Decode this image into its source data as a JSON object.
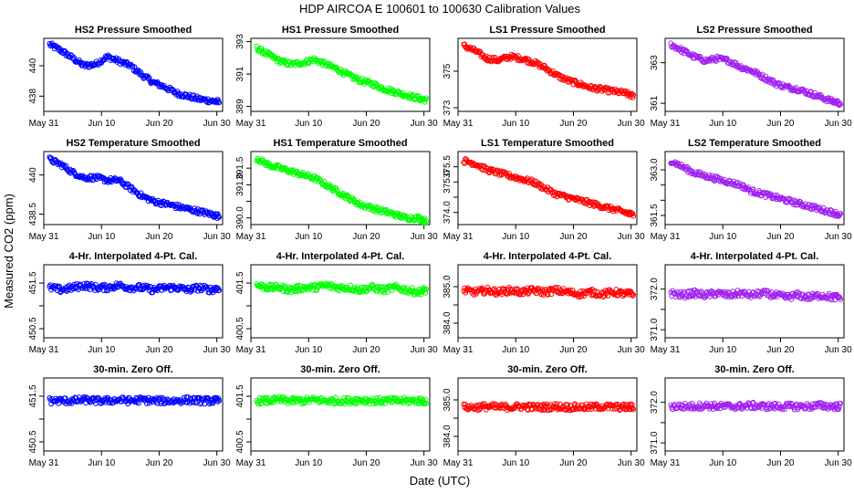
{
  "figure": {
    "title": "HDP    AIRCOA E    100601 to 100630    Calibration Values",
    "xlabel": "Date (UTC)",
    "ylabel": "Measured CO2 (ppm)"
  },
  "chart_data": [
    {
      "type": "scatter",
      "title": "HS2 Pressure Smoothed",
      "color": "#0000ff",
      "xlim": [
        0,
        31
      ],
      "ylim": [
        437,
        441.8
      ],
      "yticks": [
        438,
        440
      ],
      "xticks": [
        0,
        10,
        20,
        30
      ],
      "xticklabels": [
        "May 31",
        "Jun 10",
        "Jun 20",
        "Jun 30"
      ],
      "x": [
        1,
        3,
        5,
        7,
        9,
        11,
        13,
        15,
        17,
        19,
        21,
        23,
        25,
        27,
        29,
        30.5
      ],
      "y": [
        441.4,
        441.0,
        440.5,
        440.0,
        440.1,
        440.6,
        440.3,
        440.0,
        439.4,
        438.9,
        438.6,
        438.2,
        438.0,
        437.8,
        437.7,
        437.6
      ]
    },
    {
      "type": "scatter",
      "title": "HS1 Pressure Smoothed",
      "color": "#00ff00",
      "xlim": [
        0,
        31
      ],
      "ylim": [
        388.7,
        393.2
      ],
      "yticks": [
        389,
        391,
        393
      ],
      "xticks": [
        0,
        10,
        20,
        30
      ],
      "xticklabels": [
        "May 31",
        "Jun 10",
        "Jun 20",
        "Jun 30"
      ],
      "x": [
        1,
        3,
        5,
        7,
        9,
        11,
        13,
        15,
        17,
        19,
        21,
        23,
        25,
        27,
        29,
        30.5
      ],
      "y": [
        392.6,
        392.2,
        391.8,
        391.6,
        391.7,
        391.9,
        391.6,
        391.3,
        390.9,
        390.6,
        390.4,
        390.1,
        389.9,
        389.7,
        389.5,
        389.4
      ]
    },
    {
      "type": "scatter",
      "title": "LS1 Pressure Smoothed",
      "color": "#ff0000",
      "xlim": [
        0,
        31
      ],
      "ylim": [
        372.8,
        376.8
      ],
      "yticks": [
        373,
        375
      ],
      "xticks": [
        0,
        10,
        20,
        30
      ],
      "xticklabels": [
        "May 31",
        "Jun 10",
        "Jun 20",
        "Jun 30"
      ],
      "x": [
        1,
        3,
        5,
        7,
        9,
        11,
        13,
        15,
        17,
        19,
        21,
        23,
        25,
        27,
        29,
        30.5
      ],
      "y": [
        376.4,
        376.1,
        375.7,
        375.6,
        375.8,
        375.7,
        375.5,
        375.2,
        374.8,
        374.5,
        374.3,
        374.1,
        374.0,
        373.9,
        373.8,
        373.6
      ]
    },
    {
      "type": "scatter",
      "title": "LS2 Pressure Smoothed",
      "color": "#a020f0",
      "xlim": [
        0,
        31
      ],
      "ylim": [
        360.6,
        364.2
      ],
      "yticks": [
        361,
        363
      ],
      "xticks": [
        0,
        10,
        20,
        30
      ],
      "xticklabels": [
        "May 31",
        "Jun 10",
        "Jun 20",
        "Jun 30"
      ],
      "x": [
        1,
        3,
        5,
        7,
        9,
        11,
        13,
        15,
        17,
        19,
        21,
        23,
        25,
        27,
        29,
        30.5
      ],
      "y": [
        363.9,
        363.6,
        363.3,
        363.1,
        363.2,
        363.1,
        362.8,
        362.6,
        362.3,
        362.0,
        361.8,
        361.7,
        361.5,
        361.3,
        361.1,
        361.0
      ]
    },
    {
      "type": "scatter",
      "title": "HS2 Temperature Smoothed",
      "color": "#0000ff",
      "xlim": [
        0,
        31
      ],
      "ylim": [
        438.1,
        440.9
      ],
      "yticks": [
        438.5,
        440.0
      ],
      "xticks": [
        0,
        10,
        20,
        30
      ],
      "xticklabels": [
        "May 31",
        "Jun 10",
        "Jun 20",
        "Jun 30"
      ],
      "x": [
        1,
        3,
        5,
        7,
        9,
        11,
        13,
        15,
        17,
        19,
        21,
        23,
        25,
        27,
        29,
        30.5
      ],
      "y": [
        440.6,
        440.4,
        440.1,
        439.9,
        439.9,
        439.8,
        439.8,
        439.5,
        439.2,
        439.0,
        438.9,
        438.8,
        438.7,
        438.6,
        438.5,
        438.4
      ]
    },
    {
      "type": "scatter",
      "title": "HS1 Temperature Smoothed",
      "color": "#00ff00",
      "xlim": [
        0,
        31
      ],
      "ylim": [
        389.8,
        392.0
      ],
      "yticks": [
        390.0,
        390.5,
        391.0,
        391.5
      ],
      "yticklabels": [
        "390.0",
        "",
        "391.0",
        "391.5"
      ],
      "xticks": [
        0,
        10,
        20,
        30
      ],
      "xticklabels": [
        "May 31",
        "Jun 10",
        "Jun 20",
        "Jun 30"
      ],
      "x": [
        1,
        3,
        5,
        7,
        9,
        11,
        13,
        15,
        17,
        19,
        21,
        23,
        25,
        27,
        29,
        30.5
      ],
      "y": [
        391.8,
        391.6,
        391.5,
        391.4,
        391.3,
        391.2,
        391.0,
        390.8,
        390.6,
        390.4,
        390.3,
        390.2,
        390.1,
        390.0,
        390.0,
        389.9
      ]
    },
    {
      "type": "scatter",
      "title": "LS1 Temperature Smoothed",
      "color": "#ff0000",
      "xlim": [
        0,
        31
      ],
      "ylim": [
        373.6,
        376.0
      ],
      "yticks": [
        374.0,
        374.5,
        375.0,
        375.5
      ],
      "yticklabels": [
        "374.0",
        "",
        "375.0",
        "375.5"
      ],
      "xticks": [
        0,
        10,
        20,
        30
      ],
      "xticklabels": [
        "May 31",
        "Jun 10",
        "Jun 20",
        "Jun 30"
      ],
      "x": [
        1,
        3,
        5,
        7,
        9,
        11,
        13,
        15,
        17,
        19,
        21,
        23,
        25,
        27,
        29,
        30.5
      ],
      "y": [
        375.7,
        375.6,
        375.4,
        375.3,
        375.2,
        375.1,
        375.0,
        374.8,
        374.6,
        374.5,
        374.4,
        374.3,
        374.2,
        374.1,
        374.0,
        373.9
      ]
    },
    {
      "type": "scatter",
      "title": "LS2 Temperature Smoothed",
      "color": "#a020f0",
      "xlim": [
        0,
        31
      ],
      "ylim": [
        361.2,
        363.6
      ],
      "yticks": [
        361.5,
        362.0,
        362.5,
        363.0
      ],
      "yticklabels": [
        "361.5",
        "",
        "",
        "363.0"
      ],
      "xticks": [
        0,
        10,
        20,
        30
      ],
      "xticklabels": [
        "May 31",
        "Jun 10",
        "Jun 20",
        "Jun 30"
      ],
      "x": [
        1,
        3,
        5,
        7,
        9,
        11,
        13,
        15,
        17,
        19,
        21,
        23,
        25,
        27,
        29,
        30.5
      ],
      "y": [
        363.3,
        363.1,
        362.9,
        362.8,
        362.7,
        362.6,
        362.5,
        362.3,
        362.2,
        362.1,
        362.0,
        361.9,
        361.8,
        361.7,
        361.6,
        361.5
      ]
    },
    {
      "type": "scatter",
      "title": "4-Hr. Interpolated 4-Pt. Cal.",
      "color": "#0000ff",
      "xlim": [
        0,
        31
      ],
      "ylim": [
        450.3,
        451.9
      ],
      "yticks": [
        450.5,
        451.0,
        451.5
      ],
      "yticklabels": [
        "450.5",
        "",
        "451.5"
      ],
      "xticks": [
        0,
        10,
        20,
        30
      ],
      "xticklabels": [
        "May 31",
        "Jun 10",
        "Jun 20",
        "Jun 30"
      ],
      "x": [
        1,
        3,
        5,
        7,
        9,
        11,
        13,
        15,
        17,
        19,
        21,
        23,
        25,
        27,
        29,
        30.5
      ],
      "y": [
        451.4,
        451.35,
        451.4,
        451.45,
        451.4,
        451.4,
        451.45,
        451.4,
        451.4,
        451.35,
        451.4,
        451.4,
        451.35,
        451.4,
        451.35,
        451.4
      ]
    },
    {
      "type": "scatter",
      "title": "4-Hr. Interpolated 4-Pt. Cal.",
      "color": "#00ff00",
      "xlim": [
        0,
        31
      ],
      "ylim": [
        400.3,
        401.9
      ],
      "yticks": [
        400.5,
        401.0,
        401.5
      ],
      "yticklabels": [
        "400.5",
        "",
        "401.5"
      ],
      "xticks": [
        0,
        10,
        20,
        30
      ],
      "xticklabels": [
        "May 31",
        "Jun 10",
        "Jun 20",
        "Jun 30"
      ],
      "x": [
        1,
        3,
        5,
        7,
        9,
        11,
        13,
        15,
        17,
        19,
        21,
        23,
        25,
        27,
        29,
        30.5
      ],
      "y": [
        401.45,
        401.4,
        401.4,
        401.35,
        401.4,
        401.4,
        401.45,
        401.4,
        401.4,
        401.35,
        401.4,
        401.35,
        401.4,
        401.35,
        401.3,
        401.35
      ]
    },
    {
      "type": "scatter",
      "title": "4-Hr. Interpolated 4-Pt. Cal.",
      "color": "#ff0000",
      "xlim": [
        0,
        31
      ],
      "ylim": [
        383.6,
        385.6
      ],
      "yticks": [
        384.0,
        384.5,
        385.0
      ],
      "yticklabels": [
        "384.0",
        "",
        "385.0"
      ],
      "xticks": [
        0,
        10,
        20,
        30
      ],
      "xticklabels": [
        "May 31",
        "Jun 10",
        "Jun 20",
        "Jun 30"
      ],
      "x": [
        1,
        3,
        5,
        7,
        9,
        11,
        13,
        15,
        17,
        19,
        21,
        23,
        25,
        27,
        29,
        30.5
      ],
      "y": [
        384.9,
        384.85,
        384.9,
        384.85,
        384.9,
        384.85,
        384.9,
        384.85,
        384.9,
        384.85,
        384.8,
        384.85,
        384.8,
        384.85,
        384.8,
        384.8
      ]
    },
    {
      "type": "scatter",
      "title": "4-Hr. Interpolated 4-Pt. Cal.",
      "color": "#a020f0",
      "xlim": [
        0,
        31
      ],
      "ylim": [
        370.8,
        372.6
      ],
      "yticks": [
        371.0,
        371.5,
        372.0
      ],
      "yticklabels": [
        "371.0",
        "",
        "372.0"
      ],
      "xticks": [
        0,
        10,
        20,
        30
      ],
      "xticklabels": [
        "May 31",
        "Jun 10",
        "Jun 20",
        "Jun 30"
      ],
      "x": [
        1,
        3,
        5,
        7,
        9,
        11,
        13,
        15,
        17,
        19,
        21,
        23,
        25,
        27,
        29,
        30.5
      ],
      "y": [
        371.9,
        371.85,
        371.9,
        371.85,
        371.9,
        371.85,
        371.9,
        371.85,
        371.9,
        371.85,
        371.8,
        371.85,
        371.8,
        371.85,
        371.8,
        371.8
      ]
    },
    {
      "type": "scatter",
      "title": "30-min. Zero Off.",
      "color": "#0000ff",
      "xlim": [
        0,
        31
      ],
      "ylim": [
        450.3,
        451.9
      ],
      "yticks": [
        450.5,
        451.0,
        451.5
      ],
      "yticklabels": [
        "450.5",
        "",
        "451.5"
      ],
      "xticks": [
        0,
        10,
        20,
        30
      ],
      "xticklabels": [
        "May 31",
        "Jun 10",
        "Jun 20",
        "Jun 30"
      ],
      "x": [
        1,
        3,
        5,
        7,
        9,
        11,
        13,
        15,
        17,
        19,
        21,
        23,
        25,
        27,
        29,
        30.5
      ],
      "y": [
        451.4,
        451.4,
        451.4,
        451.42,
        451.4,
        451.4,
        451.42,
        451.4,
        451.42,
        451.4,
        451.4,
        451.4,
        451.42,
        451.4,
        451.4,
        451.4
      ]
    },
    {
      "type": "scatter",
      "title": "30-min. Zero Off.",
      "color": "#00ff00",
      "xlim": [
        0,
        31
      ],
      "ylim": [
        400.3,
        401.9
      ],
      "yticks": [
        400.5,
        401.0,
        401.5
      ],
      "yticklabels": [
        "400.5",
        "",
        "401.5"
      ],
      "xticks": [
        0,
        10,
        20,
        30
      ],
      "xticklabels": [
        "May 31",
        "Jun 10",
        "Jun 20",
        "Jun 30"
      ],
      "x": [
        1,
        3,
        5,
        7,
        9,
        11,
        13,
        15,
        17,
        19,
        21,
        23,
        25,
        27,
        29,
        30.5
      ],
      "y": [
        401.4,
        401.4,
        401.42,
        401.4,
        401.4,
        401.42,
        401.4,
        401.4,
        401.4,
        401.42,
        401.4,
        401.4,
        401.4,
        401.4,
        401.4,
        401.4
      ]
    },
    {
      "type": "scatter",
      "title": "30-min. Zero Off.",
      "color": "#ff0000",
      "xlim": [
        0,
        31
      ],
      "ylim": [
        383.6,
        385.6
      ],
      "yticks": [
        384.0,
        384.5,
        385.0
      ],
      "yticklabels": [
        "384.0",
        "",
        "385.0"
      ],
      "xticks": [
        0,
        10,
        20,
        30
      ],
      "xticklabels": [
        "May 31",
        "Jun 10",
        "Jun 20",
        "Jun 30"
      ],
      "x": [
        1,
        3,
        5,
        7,
        9,
        11,
        13,
        15,
        17,
        19,
        21,
        23,
        25,
        27,
        29,
        30.5
      ],
      "y": [
        384.8,
        384.8,
        384.82,
        384.8,
        384.8,
        384.82,
        384.8,
        384.8,
        384.82,
        384.8,
        384.8,
        384.8,
        384.82,
        384.8,
        384.8,
        384.8
      ]
    },
    {
      "type": "scatter",
      "title": "30-min. Zero Off.",
      "color": "#a020f0",
      "xlim": [
        0,
        31
      ],
      "ylim": [
        370.8,
        372.6
      ],
      "yticks": [
        371.0,
        371.5,
        372.0
      ],
      "yticklabels": [
        "371.0",
        "",
        "372.0"
      ],
      "xticks": [
        0,
        10,
        20,
        30
      ],
      "xticklabels": [
        "May 31",
        "Jun 10",
        "Jun 20",
        "Jun 30"
      ],
      "x": [
        1,
        3,
        5,
        7,
        9,
        11,
        13,
        15,
        17,
        19,
        21,
        23,
        25,
        27,
        29,
        30.5
      ],
      "y": [
        371.9,
        371.9,
        371.9,
        371.92,
        371.9,
        371.9,
        371.9,
        371.92,
        371.9,
        371.9,
        371.9,
        371.9,
        371.9,
        371.92,
        371.9,
        371.9
      ]
    }
  ]
}
